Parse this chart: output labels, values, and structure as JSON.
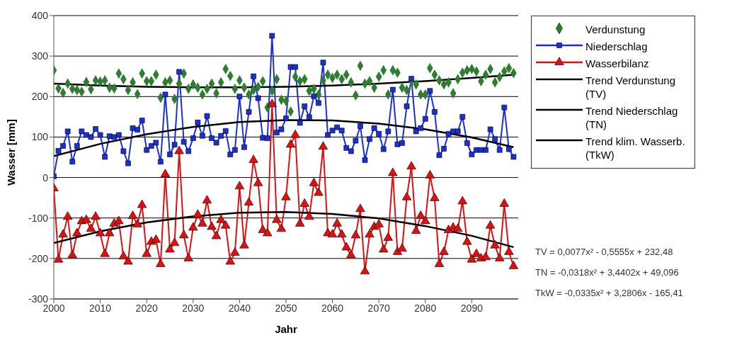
{
  "chart_data": {
    "type": "line",
    "xlabel": "Jahr",
    "ylabel": "Wasser [mm]",
    "xlim": [
      2000,
      2100
    ],
    "xticks": [
      2000,
      2010,
      2020,
      2030,
      2040,
      2050,
      2060,
      2070,
      2080,
      2090
    ],
    "ylim": [
      -300,
      400
    ],
    "yticks": [
      -300,
      -200,
      -100,
      0,
      100,
      200,
      300,
      400
    ],
    "grid": "y",
    "legend": "right",
    "x": [
      2000,
      2001,
      2002,
      2003,
      2004,
      2005,
      2006,
      2007,
      2008,
      2009,
      2010,
      2011,
      2012,
      2013,
      2014,
      2015,
      2016,
      2017,
      2018,
      2019,
      2020,
      2021,
      2022,
      2023,
      2024,
      2025,
      2026,
      2027,
      2028,
      2029,
      2030,
      2031,
      2032,
      2033,
      2034,
      2035,
      2036,
      2037,
      2038,
      2039,
      2040,
      2041,
      2042,
      2043,
      2044,
      2045,
      2046,
      2047,
      2048,
      2049,
      2050,
      2051,
      2052,
      2053,
      2054,
      2055,
      2056,
      2057,
      2058,
      2059,
      2060,
      2061,
      2062,
      2063,
      2064,
      2065,
      2066,
      2067,
      2068,
      2069,
      2070,
      2071,
      2072,
      2073,
      2074,
      2075,
      2076,
      2077,
      2078,
      2079,
      2080,
      2081,
      2082,
      2083,
      2084,
      2085,
      2086,
      2087,
      2088,
      2089,
      2090,
      2091,
      2092,
      2093,
      2094,
      2095,
      2096,
      2097,
      2098,
      2099
    ],
    "series": [
      {
        "name": "Verdunstung",
        "type": "scatter",
        "marker": "diamond",
        "color": "#2e7d32",
        "values": [
          265,
          220,
          209,
          232,
          219,
          216,
          212,
          236,
          218,
          240,
          237,
          240,
          222,
          220,
          257,
          243,
          216,
          235,
          206,
          257,
          238,
          238,
          254,
          197,
          235,
          240,
          194,
          232,
          257,
          219,
          230,
          222,
          205,
          219,
          232,
          208,
          235,
          268,
          251,
          219,
          240,
          222,
          205,
          216,
          224,
          238,
          173,
          214,
          243,
          192,
          189,
          163,
          249,
          238,
          243,
          214,
          219,
          205,
          240,
          254,
          246,
          254,
          243,
          254,
          235,
          203,
          276,
          232,
          238,
          222,
          249,
          265,
          205,
          265,
          259,
          222,
          216,
          238,
          230,
          205,
          205,
          270,
          254,
          240,
          230,
          235,
          208,
          243,
          259,
          265,
          268,
          262,
          238,
          254,
          268,
          235,
          248,
          262,
          270,
          258
        ]
      },
      {
        "name": "Niederschlag",
        "marker": "square",
        "color": "#1a2fd6",
        "values": [
          3,
          66,
          78,
          114,
          39,
          78,
          114,
          105,
          100,
          120,
          105,
          51,
          102,
          100,
          105,
          65,
          35,
          122,
          118,
          141,
          68,
          78,
          86,
          39,
          205,
          57,
          81,
          261,
          88,
          65,
          97,
          136,
          103,
          152,
          97,
          86,
          103,
          115,
          57,
          68,
          200,
          75,
          162,
          250,
          196,
          98,
          97,
          350,
          111,
          119,
          146,
          273,
          273,
          135,
          176,
          149,
          201,
          184,
          284,
          105,
          116,
          124,
          116,
          73,
          65,
          91,
          127,
          43,
          95,
          122,
          108,
          70,
          114,
          217,
          82,
          85,
          176,
          244,
          114,
          122,
          145,
          214,
          162,
          55,
          71,
          108,
          114,
          114,
          150,
          85,
          57,
          68,
          68,
          68,
          119,
          95,
          68,
          173,
          70,
          51
        ]
      },
      {
        "name": "Wasserbilanz",
        "marker": "triangle",
        "color": "#e01010",
        "values": [
          -27,
          -203,
          -141,
          -97,
          -192,
          -138,
          -108,
          -105,
          -127,
          -97,
          -138,
          -189,
          -138,
          -114,
          -108,
          -195,
          -208,
          -95,
          -116,
          -68,
          -189,
          -159,
          -154,
          -214,
          8,
          -178,
          -162,
          65,
          -143,
          -200,
          -124,
          -92,
          -114,
          -57,
          -122,
          -145,
          -105,
          -119,
          -208,
          -186,
          -22,
          -168,
          -62,
          43,
          -14,
          -130,
          -138,
          181,
          -105,
          -127,
          -49,
          81,
          105,
          -114,
          -65,
          -97,
          -14,
          -38,
          76,
          -138,
          -141,
          -114,
          -141,
          -173,
          -192,
          -143,
          -78,
          -232,
          -141,
          -122,
          -116,
          -178,
          -149,
          11,
          -184,
          -176,
          -49,
          27,
          -132,
          -95,
          -108,
          5,
          -51,
          -214,
          -184,
          -130,
          -124,
          -127,
          -59,
          -159,
          -203,
          -189,
          -200,
          -197,
          -119,
          -168,
          -200,
          -65,
          -184,
          -219
        ]
      },
      {
        "name": "Trend Verdunstung (TV)",
        "marker": "none",
        "color": "#000000",
        "x": [
          2000,
          2010,
          2020,
          2030,
          2040,
          2050,
          2060,
          2070,
          2080,
          2090,
          2099
        ],
        "values": [
          232,
          227,
          224,
          223,
          223,
          224,
          227,
          232,
          238,
          246,
          254
        ]
      },
      {
        "name": "Trend Niederschlag (TN)",
        "marker": "none",
        "color": "#000000",
        "x": [
          2000,
          2010,
          2020,
          2030,
          2040,
          2050,
          2060,
          2070,
          2080,
          2090,
          2099
        ],
        "values": [
          53,
          83,
          107,
          125,
          137,
          142,
          141,
          133,
          119,
          99,
          75
        ]
      },
      {
        "name": "Trend klim. Wasserb. (TkW)",
        "marker": "none",
        "color": "#000000",
        "x": [
          2000,
          2010,
          2020,
          2030,
          2040,
          2050,
          2060,
          2070,
          2080,
          2090,
          2099
        ],
        "values": [
          -162,
          -133,
          -111,
          -96,
          -87,
          -85,
          -90,
          -101,
          -120,
          -144,
          -172
        ]
      }
    ],
    "annotations": [
      "TV = 0,0077x² - 0,5555x + 232,48",
      "TN = -0,0318x² + 3,4402x + 49,096",
      "TkW = -0,0335x² + 3,2806x - 165,41"
    ]
  }
}
